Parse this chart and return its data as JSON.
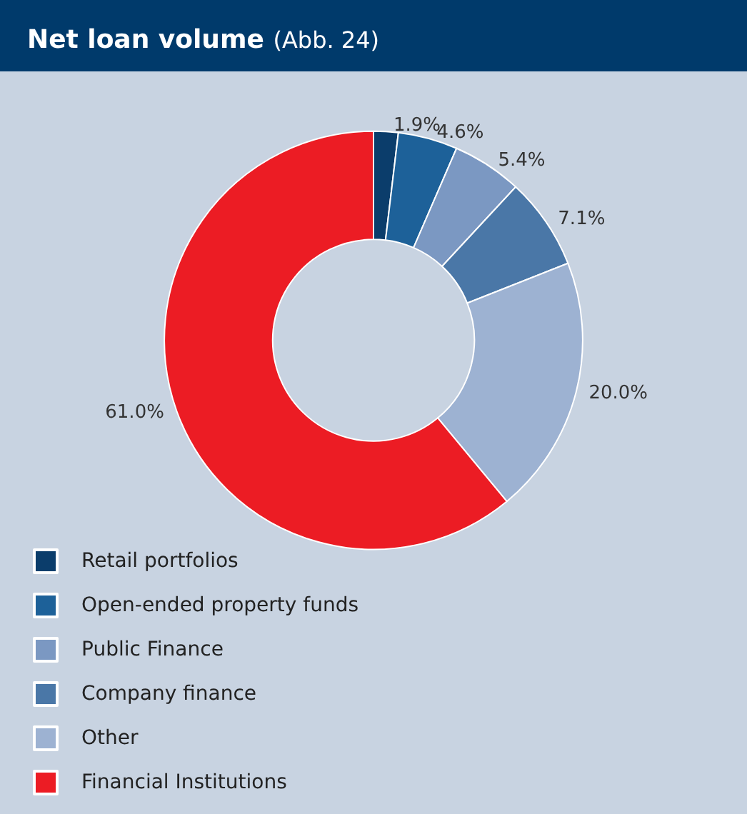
{
  "chart_data": {
    "type": "donut",
    "title": "Net loan volume",
    "subtitle": "(Abb. 24)",
    "categories": [
      "Retail portfolios",
      "Open-ended property funds",
      "Public Finance",
      "Company finance",
      "Other",
      "Financial Institutions"
    ],
    "values": [
      1.9,
      4.6,
      5.4,
      7.1,
      20.0,
      61.0
    ],
    "value_labels": [
      "1.9%",
      "4.6%",
      "5.4%",
      "7.1%",
      "20.0%",
      "61.0%"
    ],
    "colors": [
      "#0b3d6b",
      "#1d6199",
      "#7b98c2",
      "#4a77a7",
      "#9db2d2",
      "#ec1c24"
    ],
    "legend": "bottom left"
  }
}
